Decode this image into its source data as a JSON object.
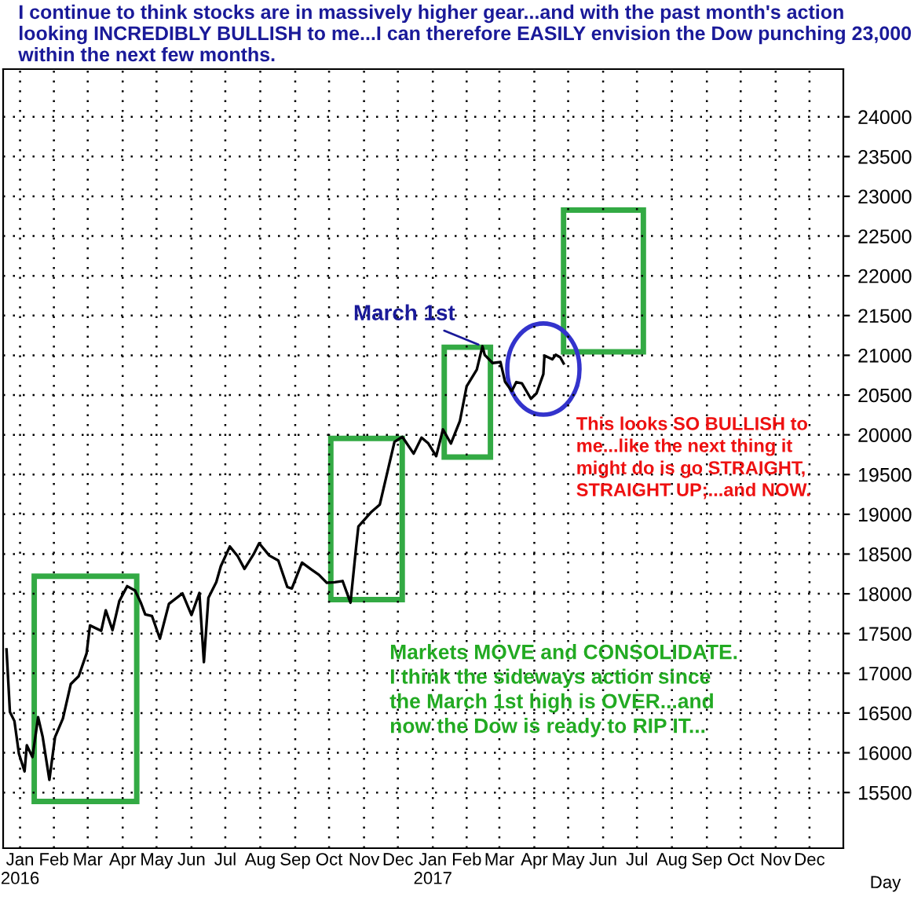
{
  "chart_data": {
    "type": "line",
    "title": "I continue to think stocks are in massively higher gear...and with the past month's action looking INCREDIBLY BULLISH to me...I can therefore EASILY envision the Dow punching 23,000 within the next few months.",
    "xlabel": "Day",
    "color": "#000000",
    "x": [
      "2016-01-04",
      "2016-01-07",
      "2016-01-11",
      "2016-01-15",
      "2016-01-20",
      "2016-01-22",
      "2016-01-27",
      "2016-02-01",
      "2016-02-05",
      "2016-02-11",
      "2016-02-16",
      "2016-02-23",
      "2016-03-01",
      "2016-03-08",
      "2016-03-15",
      "2016-03-18",
      "2016-03-28",
      "2016-04-01",
      "2016-04-07",
      "2016-04-13",
      "2016-04-20",
      "2016-04-27",
      "2016-05-02",
      "2016-05-06",
      "2016-05-12",
      "2016-05-19",
      "2016-05-27",
      "2016-06-08",
      "2016-06-16",
      "2016-06-23",
      "2016-06-27",
      "2016-07-01",
      "2016-07-08",
      "2016-07-12",
      "2016-07-20",
      "2016-07-27",
      "2016-08-02",
      "2016-08-10",
      "2016-08-15",
      "2016-08-24",
      "2016-09-01",
      "2016-09-09",
      "2016-09-13",
      "2016-09-22",
      "2016-09-30",
      "2016-10-07",
      "2016-10-14",
      "2016-10-21",
      "2016-10-28",
      "2016-11-04",
      "2016-11-09",
      "2016-11-11",
      "2016-11-22",
      "2016-11-30",
      "2016-12-07",
      "2016-12-13",
      "2016-12-20",
      "2016-12-30",
      "2017-01-06",
      "2017-01-12",
      "2017-01-19",
      "2017-01-25",
      "2017-02-01",
      "2017-02-09",
      "2017-02-15",
      "2017-02-24",
      "2017-03-01",
      "2017-03-03",
      "2017-03-10",
      "2017-03-17",
      "2017-03-21",
      "2017-03-27",
      "2017-03-31",
      "2017-04-05",
      "2017-04-13",
      "2017-04-18",
      "2017-04-24",
      "2017-04-25",
      "2017-05-02",
      "2017-05-05",
      "2017-05-09",
      "2017-05-12"
    ],
    "values": [
      17300,
      16515,
      16399,
      15988,
      15766,
      16094,
      15945,
      16449,
      16205,
      15660,
      16196,
      16431,
      16865,
      16964,
      17251,
      17602,
      17535,
      17792,
      17542,
      17908,
      18096,
      18041,
      17891,
      17740,
      17720,
      17435,
      17873,
      18005,
      17733,
      18011,
      17140,
      17949,
      18146,
      18347,
      18595,
      18472,
      18313,
      18495,
      18636,
      18481,
      18419,
      18085,
      18066,
      18392,
      18308,
      18240,
      18138,
      18145,
      18161,
      17888,
      18589,
      18847,
      19023,
      19123,
      19549,
      19911,
      19974,
      19763,
      19964,
      19892,
      19732,
      20068,
      19890,
      20172,
      20611,
      20821,
      21115,
      21006,
      20903,
      20915,
      20669,
      20550,
      20663,
      20648,
      20453,
      20523,
      20763,
      20996,
      20950,
      21007,
      20975,
      20897
    ],
    "xlim": [
      "2016-01-01",
      "2018-01-15"
    ],
    "xticks": [
      {
        "value": "2016-01-16",
        "label": "Jan\n2016"
      },
      {
        "value": "2016-02-15",
        "label": "Feb"
      },
      {
        "value": "2016-03-16",
        "label": "Mar"
      },
      {
        "value": "2016-04-16",
        "label": "Apr"
      },
      {
        "value": "2016-05-16",
        "label": "May"
      },
      {
        "value": "2016-06-16",
        "label": "Jun"
      },
      {
        "value": "2016-07-16",
        "label": "Jul"
      },
      {
        "value": "2016-08-16",
        "label": "Aug"
      },
      {
        "value": "2016-09-16",
        "label": "Sep"
      },
      {
        "value": "2016-10-16",
        "label": "Oct"
      },
      {
        "value": "2016-11-16",
        "label": "Nov"
      },
      {
        "value": "2016-12-16",
        "label": "Dec"
      },
      {
        "value": "2017-01-16",
        "label": "Jan\n2017"
      },
      {
        "value": "2017-02-15",
        "label": "Feb"
      },
      {
        "value": "2017-03-16",
        "label": "Mar"
      },
      {
        "value": "2017-04-16",
        "label": "Apr"
      },
      {
        "value": "2017-05-16",
        "label": "May"
      },
      {
        "value": "2017-06-16",
        "label": "Jun"
      },
      {
        "value": "2017-07-16",
        "label": "Jul"
      },
      {
        "value": "2017-08-16",
        "label": "Aug"
      },
      {
        "value": "2017-09-16",
        "label": "Sep"
      },
      {
        "value": "2017-10-16",
        "label": "Oct"
      },
      {
        "value": "2017-11-16",
        "label": "Nov"
      },
      {
        "value": "2017-12-16",
        "label": "Dec"
      }
    ],
    "ylim": [
      14800,
      24600
    ],
    "yticks": [
      15500,
      16000,
      16500,
      17000,
      17500,
      18000,
      18500,
      19000,
      19500,
      20000,
      20500,
      21000,
      21500,
      22000,
      22500,
      23000,
      23500,
      24000
    ],
    "grid": true,
    "annotations": [
      {
        "text": "March 1st",
        "x": "2017-03-01",
        "y": 21115
      },
      "This looks SO BULLISH to\nme...like the next thing it\nmight do is go STRAIGHT,\nSTRAIGHT UP;...and NOW.",
      "Markets MOVE and CONSOLIDATE.\nI think the sideways action since\nthe March 1st high is OVER...and\nnow the Dow is ready to RIP IT..."
    ]
  }
}
